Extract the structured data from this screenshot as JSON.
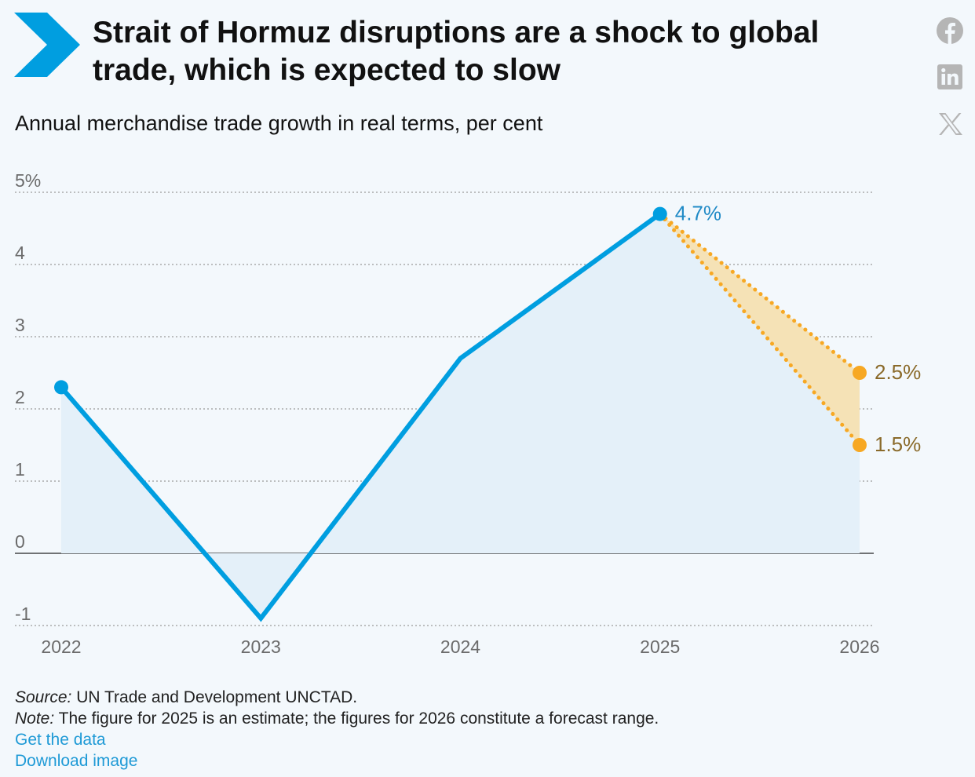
{
  "title": "Strait of Hormuz disruptions are a shock to global trade, which is expected to slow",
  "subtitle": "Annual merchandise trade growth in real terms, per cent",
  "share": {
    "facebook_icon": "facebook-icon",
    "linkedin_icon": "linkedin-icon",
    "x_icon": "x-icon"
  },
  "colors": {
    "line": "#009ee0",
    "area": "#e4f0f9",
    "forecast": "#f7a823",
    "forecast_band": "#f5e2b6",
    "link": "#1f9ad6"
  },
  "chart_data": {
    "type": "line",
    "x": [
      "2022",
      "2023",
      "2024",
      "2025",
      "2026"
    ],
    "series": [
      {
        "values": [
          2.3,
          -0.9,
          2.7,
          4.7,
          null
        ]
      }
    ],
    "forecast_range": {
      "start": {
        "x": "2025",
        "y": 4.7
      },
      "end_x": "2026",
      "high": 2.5,
      "low": 1.5
    },
    "data_labels": {
      "2025": "4.7%",
      "2026_high": "2.5%",
      "2026_low": "1.5%"
    },
    "yticks": [
      "5%",
      "4",
      "3",
      "2",
      "1",
      "0",
      "-1"
    ],
    "ytick_values": [
      5,
      4,
      3,
      2,
      1,
      0,
      -1
    ],
    "ylim": [
      -1,
      5
    ],
    "grid": true,
    "grid_style": "dotted"
  },
  "footer": {
    "source_label": "Source:",
    "source_text": " UN Trade and Development UNCTAD.",
    "note_label": "Note:",
    "note_text": " The figure for 2025 is an estimate; the figures for 2026 constitute a forecast range.",
    "get_data": "Get the data",
    "download_image": "Download image"
  }
}
